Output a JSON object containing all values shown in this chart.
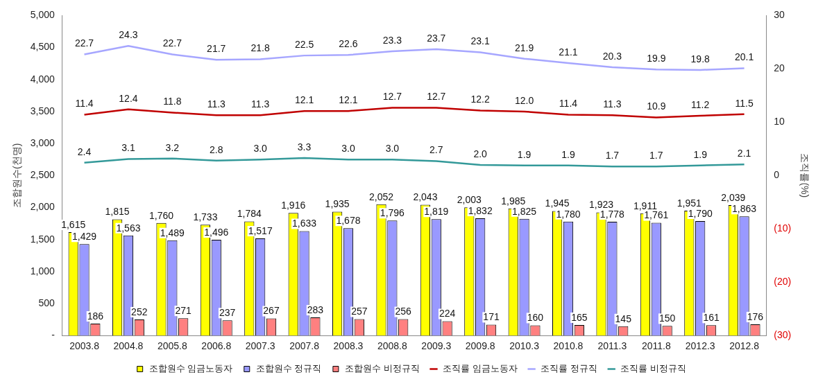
{
  "chart_data": {
    "type": "bar",
    "ylabel": "조합원수(천명)",
    "y2label": "조직률(%)",
    "categories": [
      "2003.8",
      "2004.8",
      "2005.8",
      "2006.8",
      "2007.3",
      "2007.8",
      "2008.3",
      "2008.8",
      "2009.3",
      "2009.8",
      "2010.3",
      "2010.8",
      "2011.3",
      "2011.8",
      "2012.3",
      "2012.8"
    ],
    "series": [
      {
        "name": "조합원수 임금노동자",
        "color": "#ffff00",
        "values": [
          1615,
          1815,
          1760,
          1733,
          1784,
          1916,
          1935,
          2052,
          2043,
          2003,
          1985,
          1945,
          1923,
          1911,
          1951,
          2039
        ],
        "value_labels": [
          "1,615",
          "1,815",
          "1,760",
          "1,733",
          "1,784",
          "1,916",
          "1,935",
          "2,052",
          "2,043",
          "2,003",
          "1,985",
          "1,945",
          "1,923",
          "1,911",
          "1,951",
          "2,039"
        ]
      },
      {
        "name": "조합원수 정규직",
        "color": "#9999ff",
        "values": [
          1429,
          1563,
          1489,
          1496,
          1517,
          1633,
          1678,
          1796,
          1819,
          1832,
          1825,
          1780,
          1778,
          1761,
          1790,
          1863
        ],
        "value_labels": [
          "1,429",
          "1,563",
          "1,489",
          "1,496",
          "1,517",
          "1,633",
          "1,678",
          "1,796",
          "1,819",
          "1,832",
          "1,825",
          "1,780",
          "1,778",
          "1,761",
          "1,790",
          "1,863"
        ]
      },
      {
        "name": "조합원수 비정규직",
        "color": "#ff8080",
        "values": [
          186,
          252,
          271,
          237,
          267,
          283,
          257,
          256,
          224,
          171,
          160,
          165,
          145,
          150,
          161,
          176
        ]
      },
      {
        "name": "조직률 임금노동자",
        "type": "line",
        "axis": "y2",
        "color": "#c00000",
        "values": [
          11.4,
          12.4,
          11.8,
          11.3,
          11.3,
          12.1,
          12.1,
          12.7,
          12.7,
          12.2,
          12.0,
          11.4,
          11.3,
          10.9,
          11.2,
          11.5
        ],
        "value_labels": [
          "11.4",
          "12.4",
          "11.8",
          "11.3",
          "11.3",
          "12.1",
          "12.1",
          "12.7",
          "12.7",
          "12.2",
          "12.0",
          "11.4",
          "11.3",
          "10.9",
          "11.2",
          "11.5"
        ]
      },
      {
        "name": "조직률 정규직",
        "type": "line",
        "axis": "y2",
        "color": "#a6a6ff",
        "values": [
          22.7,
          24.3,
          22.7,
          21.7,
          21.8,
          22.5,
          22.6,
          23.3,
          23.7,
          23.1,
          21.9,
          21.1,
          20.3,
          19.9,
          19.8,
          20.1
        ],
        "value_labels": [
          "22.7",
          "24.3",
          "22.7",
          "21.7",
          "21.8",
          "22.5",
          "22.6",
          "23.3",
          "23.7",
          "23.1",
          "21.9",
          "21.1",
          "20.3",
          "19.9",
          "19.8",
          "20.1"
        ]
      },
      {
        "name": "조직률 비정규직",
        "type": "line",
        "axis": "y2",
        "color": "#339999",
        "values": [
          2.4,
          3.1,
          3.2,
          2.8,
          3.0,
          3.3,
          3.0,
          3.0,
          2.7,
          2.0,
          1.9,
          1.9,
          1.7,
          1.7,
          1.9,
          2.1
        ],
        "value_labels": [
          "2.4",
          "3.1",
          "3.2",
          "2.8",
          "3.0",
          "3.3",
          "3.0",
          "3.0",
          "2.7",
          "2.0",
          "1.9",
          "1.9",
          "1.7",
          "1.7",
          "1.9",
          "2.1"
        ]
      }
    ],
    "data_labels": true,
    "ylim": [
      0,
      5000
    ],
    "yticks": [
      {
        "value": 0,
        "label": "-"
      },
      500,
      {
        "value": 1000,
        "label": "1,000"
      },
      {
        "value": 1500,
        "label": "1,500"
      },
      {
        "value": 2000,
        "label": "2,000"
      },
      {
        "value": 2500,
        "label": "2,500"
      },
      {
        "value": 3000,
        "label": "3,000"
      },
      {
        "value": 3500,
        "label": "3,500"
      },
      {
        "value": 4000,
        "label": "4,000"
      },
      {
        "value": 4500,
        "label": "4,500"
      },
      {
        "value": 5000,
        "label": "5,000"
      }
    ],
    "y2lim": [
      -30,
      30
    ],
    "y2ticks": [
      {
        "value": -30,
        "label": "(30)"
      },
      {
        "value": -20,
        "label": "(20)"
      },
      {
        "value": -10,
        "label": "(10)"
      },
      0,
      10,
      20,
      30
    ],
    "grid": false,
    "legend": "bottom",
    "marker": "none",
    "line_style": "solid"
  }
}
